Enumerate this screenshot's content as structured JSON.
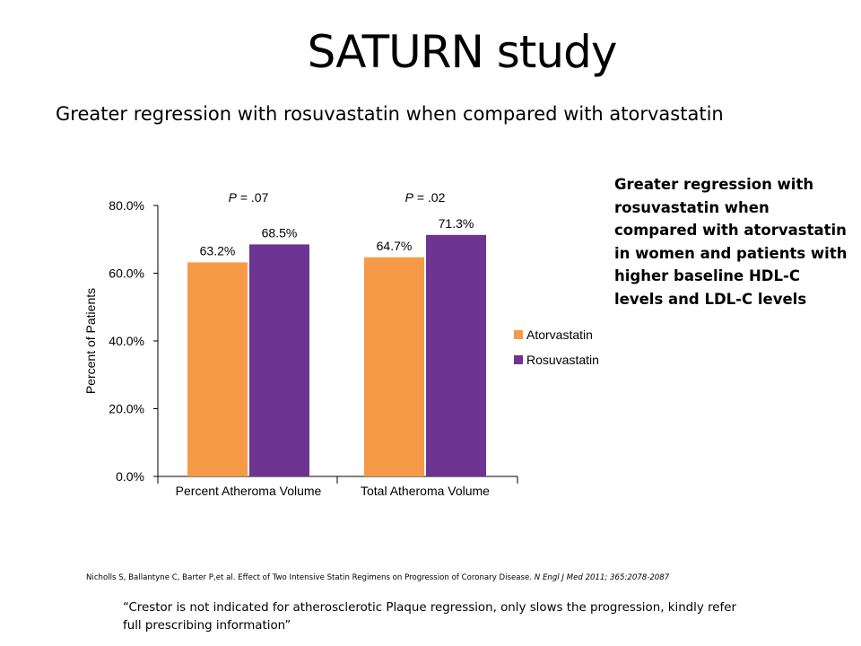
{
  "slide": {
    "title": "SATURN study",
    "subtitle": "Greater regression with rosuvastatin when compared with atorvastatin",
    "side_note": "Greater regression with rosuvastatin when compared with atorvastatin in women and patients with higher baseline HDL-C levels and LDL-C levels",
    "citation_main": "Nicholls S, Ballantyne C, Barter P,et al. Effect of Two Intensive Statin Regimens on Progression of Coronary Disease. ",
    "citation_journal": "N Engl J Med 2011; 365:2078-2087",
    "disclaimer": "“Crestor is not indicated for atherosclerotic Plaque regression, only slows the progression, kindly refer full prescribing information”"
  },
  "colors": {
    "atorvastatin": "#f79a47",
    "rosuvastatin": "#6e3491"
  },
  "chart_data": {
    "type": "bar",
    "categories": [
      "Percent Atheroma Volume",
      "Total Atheroma Volume"
    ],
    "series": [
      {
        "name": "Atorvastatin",
        "values": [
          63.2,
          64.7
        ],
        "labels": [
          "63.2%",
          "64.7%"
        ]
      },
      {
        "name": "Rosuvastatin",
        "values": [
          68.5,
          71.3
        ],
        "labels": [
          "68.5%",
          "71.3%"
        ]
      }
    ],
    "p_values": [
      {
        "prefix": "P",
        "rest": " = .07"
      },
      {
        "prefix": "P",
        "rest": " = .02"
      }
    ],
    "ylabel": "Percent of Patients",
    "ylim": [
      0,
      80
    ],
    "yticks": [
      0,
      20,
      40,
      60,
      80
    ],
    "ytick_labels": [
      "0.0%",
      "20.0%",
      "40.0%",
      "60.0%",
      "80.0%"
    ],
    "grid": false,
    "legend_position": "right"
  }
}
